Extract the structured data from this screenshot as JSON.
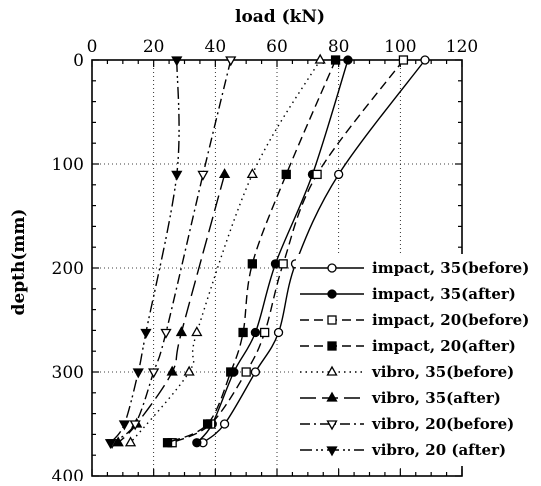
{
  "chart_data": {
    "type": "line",
    "xlabel": "load (kN)",
    "ylabel": "depth(mm)",
    "x_axis_position": "top",
    "y_axis_inverted": true,
    "xlim": [
      0,
      12
    ],
    "ylim": [
      0,
      400
    ],
    "x_ticks": [
      0,
      2,
      4,
      6,
      8,
      10,
      12
    ],
    "x_tick_labels": [
      "0",
      "20",
      "40",
      "60",
      "80",
      "100",
      "120"
    ],
    "y_ticks": [
      0,
      100,
      200,
      300,
      400
    ],
    "y_tick_labels": [
      "0",
      "100",
      "200",
      "300",
      "400"
    ],
    "grid": true,
    "legend_position": "bottom-right",
    "series": [
      {
        "name": "impact, 35(before)",
        "marker": "open-circle",
        "line": "solid",
        "points": [
          [
            10.8,
            0
          ],
          [
            8.0,
            110
          ],
          [
            6.6,
            196
          ],
          [
            6.05,
            262
          ],
          [
            5.3,
            300
          ],
          [
            4.3,
            350
          ],
          [
            3.6,
            368
          ]
        ]
      },
      {
        "name": "impact, 35(after)",
        "marker": "filled-circle",
        "line": "solid",
        "points": [
          [
            8.3,
            0
          ],
          [
            7.15,
            110
          ],
          [
            5.95,
            196
          ],
          [
            5.3,
            262
          ],
          [
            4.6,
            300
          ],
          [
            3.9,
            350
          ],
          [
            3.4,
            368
          ]
        ]
      },
      {
        "name": "impact, 20(before)",
        "marker": "open-square",
        "line": "dash",
        "points": [
          [
            10.1,
            0
          ],
          [
            7.3,
            110
          ],
          [
            6.2,
            196
          ],
          [
            5.6,
            262
          ],
          [
            5.0,
            300
          ],
          [
            3.85,
            350
          ],
          [
            2.6,
            368
          ]
        ]
      },
      {
        "name": "impact, 20(after)",
        "marker": "filled-square",
        "line": "dash",
        "points": [
          [
            7.9,
            0
          ],
          [
            6.3,
            110
          ],
          [
            5.2,
            196
          ],
          [
            4.9,
            262
          ],
          [
            4.5,
            300
          ],
          [
            3.75,
            350
          ],
          [
            2.45,
            368
          ]
        ]
      },
      {
        "name": "vibro, 35(before)",
        "marker": "open-triangle",
        "line": "dot",
        "points": [
          [
            7.4,
            0
          ],
          [
            5.2,
            110
          ],
          [
            3.4,
            262
          ],
          [
            3.15,
            300
          ],
          [
            1.25,
            368
          ]
        ]
      },
      {
        "name": "vibro, 35(after)",
        "marker": "filled-triangle",
        "line": "long-dash",
        "points": [
          [
            4.3,
            110
          ],
          [
            2.9,
            262
          ],
          [
            2.6,
            300
          ],
          [
            1.45,
            350
          ],
          [
            0.85,
            368
          ]
        ]
      },
      {
        "name": "vibro, 20(before)",
        "marker": "open-down-triangle",
        "line": "dash-dot",
        "points": [
          [
            4.5,
            0
          ],
          [
            3.6,
            110
          ],
          [
            2.4,
            262
          ],
          [
            2.0,
            300
          ],
          [
            1.4,
            350
          ],
          [
            0.65,
            368
          ]
        ]
      },
      {
        "name": "vibro, 20 (after)",
        "marker": "filled-down-triangle",
        "line": "dash-dot-dot",
        "points": [
          [
            2.75,
            0
          ],
          [
            2.75,
            110
          ],
          [
            1.75,
            262
          ],
          [
            1.5,
            300
          ],
          [
            1.05,
            350
          ],
          [
            0.6,
            368
          ]
        ]
      }
    ]
  }
}
